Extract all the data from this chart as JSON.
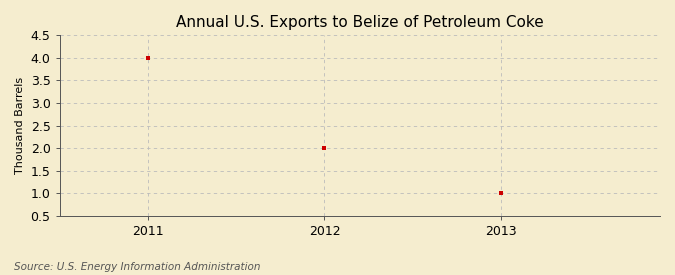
{
  "title": "Annual U.S. Exports to Belize of Petroleum Coke",
  "ylabel": "Thousand Barrels",
  "source_text": "Source: U.S. Energy Information Administration",
  "years": [
    2011,
    2012,
    2013
  ],
  "values": [
    4.0,
    2.0,
    1.0
  ],
  "xlim": [
    2010.5,
    2013.9
  ],
  "ylim": [
    0.5,
    4.5
  ],
  "yticks": [
    0.5,
    1.0,
    1.5,
    2.0,
    2.5,
    3.0,
    3.5,
    4.0,
    4.5
  ],
  "xticks": [
    2011,
    2012,
    2013
  ],
  "background_color": "#f5edcf",
  "plot_bg_color": "#f5edcf",
  "grid_color": "#bbbbbb",
  "marker_color": "#cc0000",
  "spine_color": "#555555",
  "title_fontsize": 11,
  "label_fontsize": 8,
  "tick_fontsize": 9,
  "source_fontsize": 7.5
}
